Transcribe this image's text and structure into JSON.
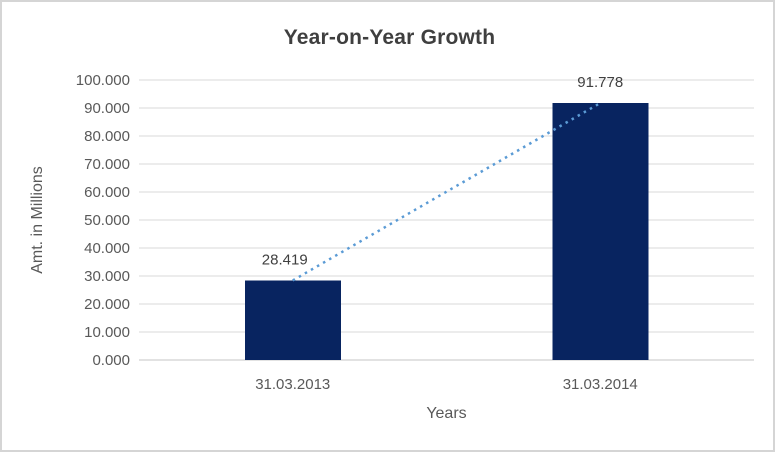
{
  "chart_data": {
    "type": "bar",
    "title": "Year-on-Year Growth",
    "xlabel": "Years",
    "ylabel": "Amt. in Millions",
    "categories": [
      "31.03.2013",
      "31.03.2014"
    ],
    "values": [
      28.419,
      91.778
    ],
    "data_labels": [
      "28.419",
      "91.778"
    ],
    "ylim": [
      0,
      100
    ],
    "ytick_step": 10,
    "ytick_values": [
      0,
      10,
      20,
      30,
      40,
      50,
      60,
      70,
      80,
      90,
      100
    ],
    "ytick_labels": [
      "0.000",
      "10.000",
      "20.000",
      "30.000",
      "40.000",
      "50.000",
      "60.000",
      "70.000",
      "80.000",
      "90.000",
      "100.000"
    ],
    "grid": true,
    "legend": false,
    "trendline": {
      "style": "dotted",
      "from": {
        "category": "31.03.2013",
        "value": 28.419
      },
      "to": {
        "category": "31.03.2014",
        "value": 91.778
      }
    },
    "colors": {
      "bar": "#082460",
      "trendline": "#5b9bd5",
      "gridline": "#d9d9d9",
      "axis_line": "#c6c6c6",
      "title_text": "#3f3f3f",
      "tick_text": "#595959",
      "axis_title_text": "#595959",
      "data_label_text": "#404040",
      "frame_border": "#d5d5d5",
      "background": "#ffffff"
    }
  }
}
